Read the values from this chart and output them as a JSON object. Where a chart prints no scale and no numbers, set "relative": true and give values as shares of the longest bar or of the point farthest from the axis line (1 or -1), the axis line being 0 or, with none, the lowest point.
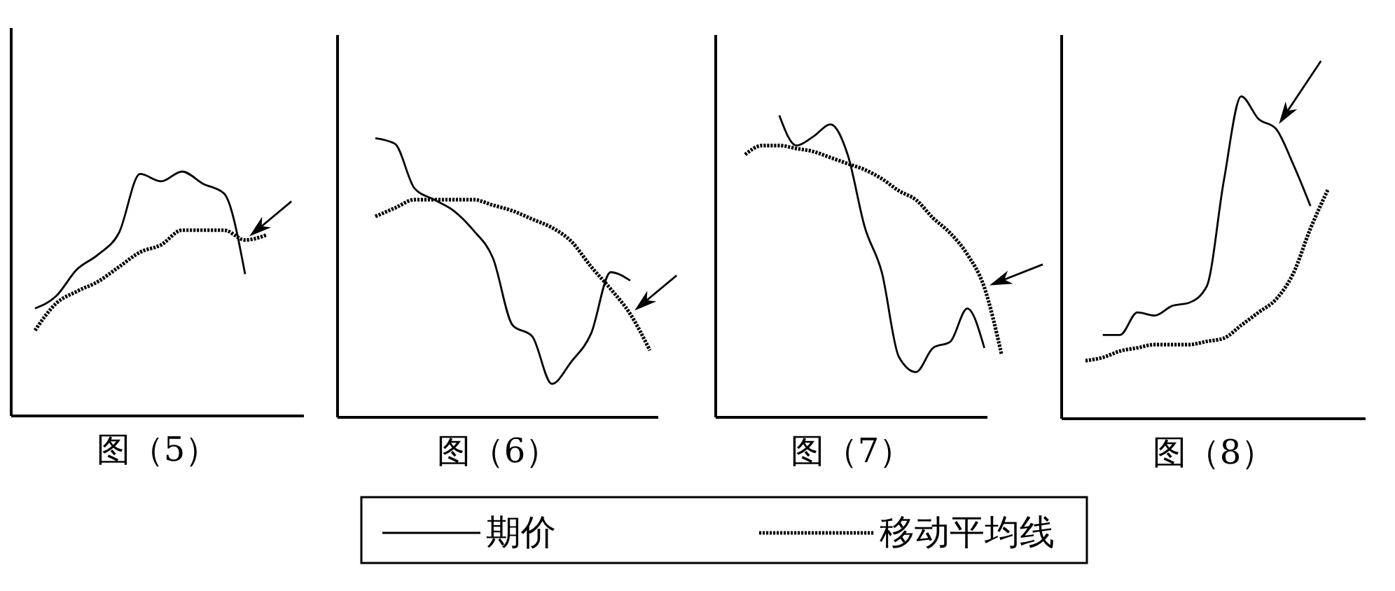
{
  "chart_data": [
    {
      "type": "line",
      "title": "图（5）",
      "relative": true,
      "legend": "bottom",
      "categories": [
        null,
        null,
        null,
        null,
        null,
        null,
        null,
        null,
        null,
        null,
        null,
        null
      ],
      "series": [
        {
          "name": "期价",
          "color": "#000000",
          "line_style": "solid",
          "values": [
            0.44,
            0.49,
            0.6,
            0.66,
            0.75,
            0.99,
            0.96,
            1,
            0.95,
            0.91,
            0.58,
            null
          ]
        },
        {
          "name": "移动平均线",
          "color": "#000000",
          "line_style": "dotted",
          "values": [
            0.35,
            0.46,
            0.51,
            0.55,
            0.61,
            0.67,
            0.7,
            0.76,
            0.76,
            0.76,
            0.72,
            0.74
          ]
        }
      ]
    },
    {
      "type": "line",
      "title": "图（6）",
      "relative": true,
      "categories": [
        null,
        null,
        null,
        null,
        null,
        null,
        null,
        null,
        null,
        null,
        null,
        null,
        null,
        null,
        null
      ],
      "series": [
        {
          "color": "#000000",
          "line_style": "solid",
          "values": [
            1,
            0.98,
            0.82,
            0.78,
            0.74,
            0.67,
            0.57,
            0.33,
            0.29,
            0.12,
            0.2,
            0.3,
            0.52,
            0.49,
            null
          ]
        },
        {
          "color": "#000000",
          "line_style": "dotted",
          "values": [
            0.72,
            0.75,
            0.78,
            0.78,
            0.78,
            0.78,
            0.76,
            0.74,
            0.71,
            0.68,
            0.63,
            0.54,
            0.46,
            0.37,
            0.24
          ]
        }
      ]
    },
    {
      "type": "line",
      "title": "图（7）",
      "relative": true,
      "categories": [
        null,
        null,
        null,
        null,
        null,
        null,
        null,
        null,
        null,
        null,
        null,
        null,
        null,
        null,
        null,
        null
      ],
      "series": [
        {
          "color": "#000000",
          "line_style": "solid",
          "values": [
            null,
            null,
            1,
            0.9,
            0.93,
            0.97,
            0.87,
            0.63,
            0.48,
            0.2,
            0.15,
            0.23,
            0.25,
            0.36,
            0.23,
            null
          ]
        },
        {
          "color": "#000000",
          "line_style": "dotted",
          "values": [
            0.87,
            0.9,
            0.9,
            0.89,
            0.88,
            0.86,
            0.84,
            0.82,
            0.79,
            0.75,
            0.72,
            0.66,
            0.61,
            0.54,
            0.43,
            0.21
          ]
        }
      ]
    },
    {
      "type": "line",
      "title": "图（8）",
      "relative": true,
      "categories": [
        null,
        null,
        null,
        null,
        null,
        null,
        null,
        null,
        null,
        null,
        null,
        null,
        null,
        null,
        null
      ],
      "series": [
        {
          "color": "#000000",
          "line_style": "solid",
          "values": [
            null,
            0.26,
            0.26,
            0.33,
            0.32,
            0.35,
            0.36,
            0.41,
            0.74,
            1,
            0.93,
            0.9,
            0.79,
            0.66,
            null
          ]
        },
        {
          "color": "#000000",
          "line_style": "dotted",
          "values": [
            0.18,
            0.19,
            0.21,
            0.22,
            0.23,
            0.23,
            0.23,
            0.24,
            0.25,
            0.29,
            0.33,
            0.37,
            0.45,
            0.59,
            0.71
          ]
        }
      ]
    }
  ]
}
